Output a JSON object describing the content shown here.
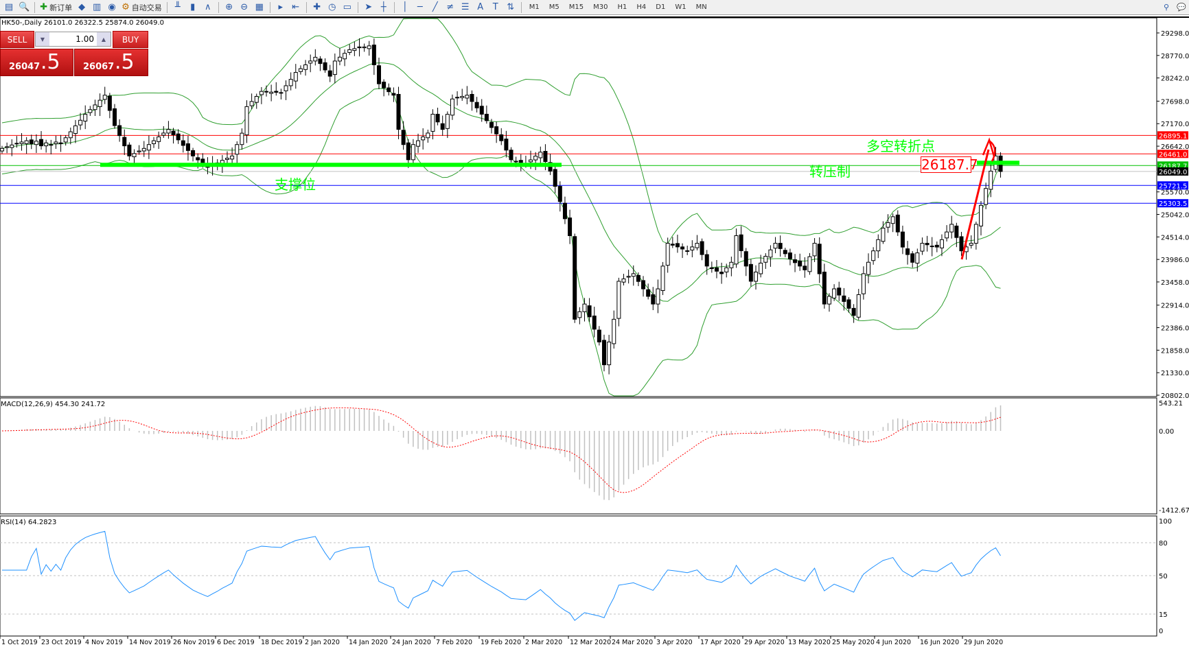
{
  "toolbar": {
    "left_icons": [
      "new-chart-icon",
      "profiles-icon",
      "navigator-icon"
    ],
    "new_order": "新订单",
    "auto_trading": "自动交易",
    "mid_icons": [
      "meta-editor-icon",
      "market-watch-icon",
      "signals-icon"
    ],
    "chart_icons": [
      "bar-chart-icon",
      "candlestick-icon",
      "line-chart-icon",
      "zoom-in-icon",
      "zoom-out-icon",
      "tile-windows-icon",
      "autoscroll-icon",
      "chart-shift-icon",
      "indicators-icon",
      "periods-icon",
      "templates-icon",
      "cursor-icon",
      "crosshair-icon",
      "vertical-line-icon",
      "horizontal-line-icon",
      "trendline-icon",
      "equidistant-channel-icon",
      "fibonacci-icon",
      "text-icon",
      "text-label-icon",
      "arrows-icon"
    ],
    "text_A": "A",
    "text_T": "T",
    "timeframes": [
      "M1",
      "M5",
      "M15",
      "M30",
      "H1",
      "H4",
      "D1",
      "W1",
      "MN"
    ]
  },
  "symbol_info": "HK50-,Daily  26101.0 26322.5 25874.0 26049.0",
  "trade_panel": {
    "sell_label": "SELL",
    "buy_label": "BUY",
    "quantity": "1.00",
    "sell_price_small": "26047",
    "sell_price_large": ".5",
    "buy_price_small": "26067",
    "buy_price_large": ".5",
    "color": "#d42020"
  },
  "annotations": {
    "support": "支撑位",
    "resistance": "转压制",
    "pivot": "多空转折点",
    "price_box": "26187.7"
  },
  "chart_data": [
    {
      "type": "candlestick",
      "symbol": "HK50-",
      "timeframe": "Daily",
      "x_tick_labels": [
        "1 Oct 2019",
        "23 Oct 2019",
        "4 Nov 2019",
        "14 Nov 2019",
        "26 Nov 2019",
        "6 Dec 2019",
        "18 Dec 2019",
        "2 Jan 2020",
        "14 Jan 2020",
        "24 Jan 2020",
        "7 Feb 2020",
        "19 Feb 2020",
        "2 Mar 2020",
        "12 Mar 2020",
        "24 Mar 2020",
        "3 Apr 2020",
        "17 Apr 2020",
        "29 Apr 2020",
        "13 May 2020",
        "25 May 2020",
        "4 Jun 2020",
        "16 Jun 2020",
        "29 Jun 2020"
      ],
      "y_tick_labels": [
        "29298.0",
        "28770.0",
        "28242.0",
        "27698.0",
        "27170.0",
        "26642.0",
        "25570.0",
        "25042.0",
        "24514.0",
        "23986.0",
        "23458.0",
        "22914.0",
        "22386.0",
        "21858.0",
        "21330.0",
        "20802.0"
      ],
      "ylim": [
        20802,
        29298
      ],
      "last_ohlc": {
        "open": 26101.0,
        "high": 26322.5,
        "low": 25874.0,
        "close": 26049.0
      },
      "closes": [
        26590,
        26630,
        26670,
        26700,
        26740,
        26770,
        26700,
        26760,
        26650,
        26720,
        26680,
        26740,
        26700,
        26840,
        26980,
        27120,
        27250,
        27390,
        27500,
        27610,
        27720,
        27838,
        27480,
        27125,
        26890,
        26650,
        26413,
        26470,
        26530,
        26590,
        26680,
        26770,
        26860,
        26950,
        27036,
        26910,
        26790,
        26660,
        26540,
        26413,
        26320,
        26230,
        26146,
        26200,
        26250,
        26310,
        26360,
        26413,
        26680,
        26947,
        27570,
        27690,
        27810,
        27927,
        27920,
        27910,
        27905,
        27900,
        28060,
        28210,
        28372,
        28460,
        28550,
        28640,
        28728,
        28580,
        28430,
        28283,
        28639,
        28730,
        28820,
        28906,
        28930,
        28950,
        28970,
        28995,
        28550,
        28105,
        28010,
        27920,
        27838,
        27036,
        26680,
        26324,
        26680,
        26770,
        26860,
        26950,
        27392,
        27210,
        27036,
        27390,
        27749,
        27780,
        27810,
        27838,
        27690,
        27540,
        27392,
        27240,
        27080,
        26930,
        26770,
        26550,
        26324,
        26290,
        26260,
        26235,
        26320,
        26410,
        26502,
        26280,
        26057,
        25700,
        25344,
        24940,
        24543,
        22583,
        22760,
        22940,
        22640,
        22350,
        22050,
        21515,
        22050,
        22583,
        23474,
        23530,
        23590,
        23652,
        23470,
        23296,
        23120,
        22940,
        23296,
        23830,
        24365,
        24320,
        24280,
        24230,
        24187,
        24280,
        24365,
        24100,
        23830,
        23770,
        23710,
        23652,
        23790,
        23919,
        24543,
        24190,
        23830,
        23474,
        23690,
        23900,
        24060,
        24210,
        24365,
        24240,
        24120,
        24000,
        23910,
        23830,
        23741,
        24050,
        24365,
        23650,
        22940,
        23120,
        23296,
        23150,
        23000,
        22840,
        22672,
        23160,
        23652,
        23920,
        24187,
        24450,
        24721,
        24850,
        24988,
        24630,
        24276,
        24100,
        23919,
        24140,
        24365,
        24330,
        24300,
        24276,
        24450,
        24630,
        24810,
        24500,
        24187,
        24280,
        24365,
        24810,
        25255,
        25650,
        26057,
        26413,
        26049
      ],
      "bollinger": {
        "period": 20,
        "deviation": 2,
        "color": "#2e9e2e"
      },
      "horizontal_lines": [
        {
          "price": 26895.1,
          "label": "26895.1",
          "color": "#ff0000"
        },
        {
          "price": 26461.0,
          "label": "26461.0",
          "color": "#ff0000"
        },
        {
          "price": 26187.7,
          "label": "26187.7",
          "color": "#00c000"
        },
        {
          "price": 26049.0,
          "label": "26049.0",
          "color": "#c0c0c0",
          "label_bg": "#000000"
        },
        {
          "price": 25721.5,
          "label": "25721.5",
          "color": "#0000ff"
        },
        {
          "price": 25303.5,
          "label": "25303.5",
          "color": "#0000ff"
        }
      ]
    },
    {
      "type": "macd",
      "title": "MACD(12,26,9) 454.30 241.72",
      "params": [
        12,
        26,
        9
      ],
      "main": 454.3,
      "signal": 241.72,
      "y_tick_labels": [
        "543.21",
        "0.00",
        "-1412.67"
      ],
      "ylim": [
        -1412.67,
        543.21
      ],
      "hist_color": "#c0c0c0",
      "signal_color": "#ff0000"
    },
    {
      "type": "rsi",
      "title": "RSI(14) 64.2823",
      "period": 14,
      "value": 64.2823,
      "y_tick_labels": [
        "100",
        "80",
        "50",
        "15",
        "0"
      ],
      "levels": [
        80,
        50,
        15
      ],
      "ylim": [
        0,
        100
      ],
      "color": "#1e90ff"
    }
  ]
}
